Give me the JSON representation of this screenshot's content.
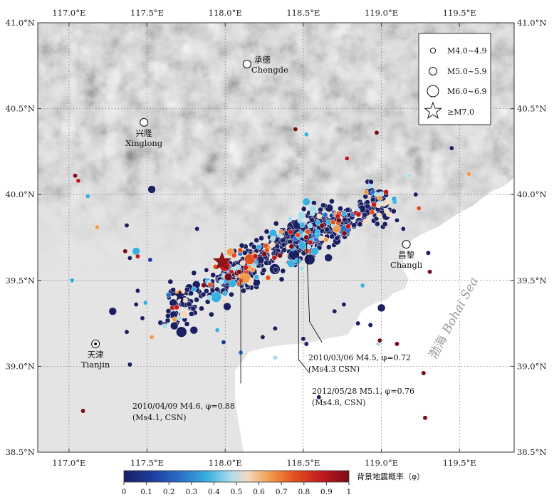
{
  "map": {
    "lon_range": [
      116.8,
      119.85
    ],
    "lat_range": [
      38.5,
      41.0
    ],
    "lon_ticks": [
      {
        "value": 117.0,
        "label": "117.0°E"
      },
      {
        "value": 117.5,
        "label": "117.5°E"
      },
      {
        "value": 118.0,
        "label": "118.0°E"
      },
      {
        "value": 118.5,
        "label": "118.5°E"
      },
      {
        "value": 119.0,
        "label": "119.0°E"
      },
      {
        "value": 119.5,
        "label": "119.5°E"
      }
    ],
    "lat_ticks": [
      {
        "value": 38.5,
        "label": "38.5°N"
      },
      {
        "value": 39.0,
        "label": "39.0°N"
      },
      {
        "value": 39.5,
        "label": "39.5°N"
      },
      {
        "value": 40.0,
        "label": "40.0°N"
      },
      {
        "value": 40.5,
        "label": "40.5°N"
      },
      {
        "value": 41.0,
        "label": "41.0°N"
      }
    ],
    "grid": "dotted"
  },
  "cities": [
    {
      "cn": "承德",
      "en": "Chengde",
      "lon": 118.14,
      "lat": 40.76,
      "label_side": "right"
    },
    {
      "cn": "兴隆",
      "en": "Xinglong",
      "lon": 117.48,
      "lat": 40.42,
      "label_side": "below"
    },
    {
      "cn": "昌黎",
      "en": "Changli",
      "lon": 119.16,
      "lat": 39.71,
      "label_side": "below"
    },
    {
      "cn": "天津",
      "en": "Tianjin",
      "lon": 117.17,
      "lat": 39.13,
      "label_side": "below"
    }
  ],
  "sea_label": {
    "cn": "渤海",
    "en": "Bohai Sea"
  },
  "legend": {
    "items": [
      {
        "label": "M4.0~4.9"
      },
      {
        "label": "M5.0~5.9"
      },
      {
        "label": "M6.0~6.9"
      },
      {
        "label": "≥M7.0"
      }
    ]
  },
  "annotations": [
    {
      "line1": "2010/03/06 M4.5, φ=0.72",
      "line2": "(Ms4.3 CSN)"
    },
    {
      "line1": "2012/05/28 M5.1, φ=0.76",
      "line2": "(Ms4.8, CSN)"
    },
    {
      "line1": "2010/04/09 M4.6, φ=0.88",
      "line2": "(Ms4.1, CSN)"
    }
  ],
  "colorbar": {
    "title": "背景地震概率（φ）",
    "ticks": [
      "0",
      "0.1",
      "0.2",
      "0.3",
      "0.4",
      "0.5",
      "0.6",
      "0.7",
      "0.8",
      "0.9",
      "1"
    ]
  },
  "colors": {
    "scale": [
      "#1a2060",
      "#1e3a9a",
      "#2a6fc8",
      "#39b0e0",
      "#a6dcec",
      "#f4d9c0",
      "#f29a4a",
      "#e2501e",
      "#c0191e",
      "#7a0c18"
    ],
    "land": "#e6e6e6",
    "sea": "#ffffff"
  },
  "mainshock": {
    "lon": 117.98,
    "lat": 39.61,
    "label": "≥M7.0"
  }
}
